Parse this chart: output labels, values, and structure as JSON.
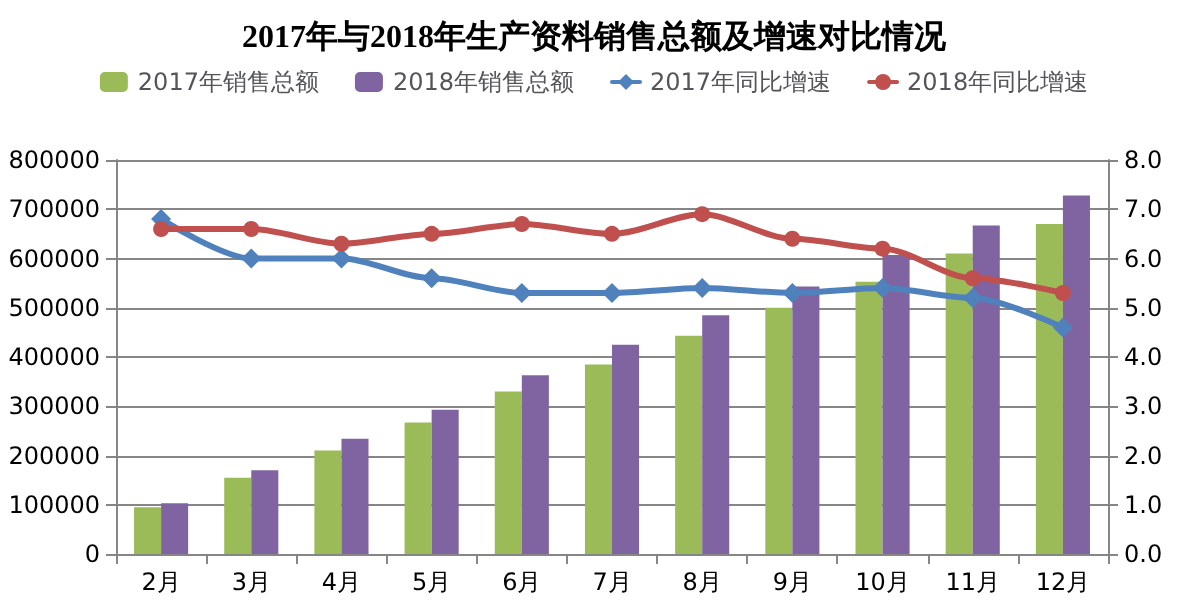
{
  "chart_data": {
    "type": "bar",
    "title": "2017年与2018年生产资料销售总额及增速对比情况",
    "categories": [
      "2月",
      "3月",
      "4月",
      "5月",
      "6月",
      "7月",
      "8月",
      "9月",
      "10月",
      "11月",
      "12月"
    ],
    "series": [
      {
        "name": "2017年销售总额",
        "color": "#9bbb59",
        "values": [
          95000,
          155000,
          210000,
          267000,
          330000,
          385000,
          443000,
          500000,
          553000,
          610000,
          670000
        ]
      },
      {
        "name": "2018年销售总额",
        "color": "#8064a2",
        "values": [
          103000,
          170000,
          234000,
          293000,
          363000,
          425000,
          485000,
          543000,
          607000,
          667000,
          728000
        ]
      },
      {
        "name": "2017年同比增速",
        "type": "line",
        "axis": "y2",
        "marker": "diamond",
        "color": "#4f81bd",
        "values": [
          6.8,
          6.0,
          6.0,
          5.6,
          5.3,
          5.3,
          5.4,
          5.3,
          5.4,
          5.2,
          4.6
        ]
      },
      {
        "name": "2018年同比增速",
        "type": "line",
        "axis": "y2",
        "marker": "circle",
        "color": "#c0504d",
        "values": [
          6.6,
          6.6,
          6.3,
          6.5,
          6.7,
          6.5,
          6.9,
          6.4,
          6.2,
          5.6,
          5.3
        ]
      }
    ],
    "ylim": [
      0,
      800000
    ],
    "yticks": [
      0,
      100000,
      200000,
      300000,
      400000,
      500000,
      600000,
      700000,
      800000
    ],
    "y2lim": [
      0,
      8
    ],
    "y2ticks": [
      {
        "value": 0,
        "label": "0.0"
      },
      {
        "value": 1,
        "label": "1.0"
      },
      {
        "value": 2,
        "label": "2.0"
      },
      {
        "value": 3,
        "label": "3.0"
      },
      {
        "value": 4,
        "label": "4.0"
      },
      {
        "value": 5,
        "label": "5.0"
      },
      {
        "value": 6,
        "label": "6.0"
      },
      {
        "value": 7,
        "label": "7.0"
      },
      {
        "value": 8,
        "label": "8.0"
      }
    ],
    "grid": "y",
    "legend": "top"
  }
}
